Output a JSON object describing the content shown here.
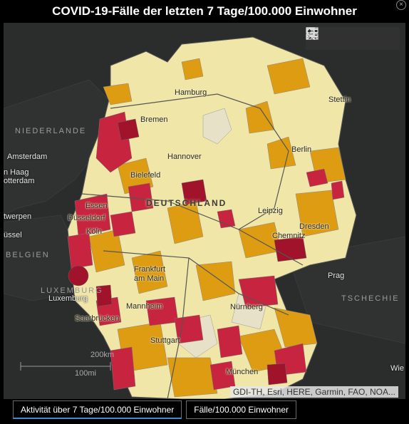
{
  "title": "COVID-19-Fälle der letzten 7 Tage/100.000 Einwohner",
  "toolbar": {
    "icons": [
      "search-icon",
      "bookmark-icon",
      "legend-icon",
      "basemap-gallery-icon"
    ]
  },
  "map": {
    "country_labels": {
      "netherlands": "NIEDERLANDE",
      "belgium": "BELGIEN",
      "luxembourg": "LUXEMBURG",
      "germany": "DEUTSCHLAND",
      "czech": "TSCHECHIE"
    },
    "cities": {
      "hamburg": "Hamburg",
      "stettin": "Stettin",
      "bremen": "Bremen",
      "berlin": "Berlin",
      "amsterdam": "Amsterdam",
      "den_haag": "n Haag",
      "rotterdam": "otterdam",
      "hannover": "Hannover",
      "bielefeld": "Bielefeld",
      "essen": "Essen",
      "duesseldorf": "Düsseldorf",
      "antwerpen": "twerpen",
      "bruessel": "üssel",
      "koeln": "Köln",
      "leipzig": "Leipzig",
      "dresden": "Dresden",
      "chemnitz": "Chemnitz",
      "prag": "Prag",
      "frankfurt_1": "Frankfurt",
      "frankfurt_2": "am Main",
      "luxemburg": "Luxemburg",
      "mannheim": "Mannheim",
      "nuernberg": "Nürnberg",
      "saarbruecken": "Saarbrücken",
      "stuttgart": "Stuttgart",
      "muenchen": "München",
      "wien": "Wie"
    },
    "colors": {
      "background": "#2b2c2c",
      "low": "#f0e6a8",
      "lowest": "#e7e1c8",
      "medium": "#dd9c12",
      "high": "#c7253f",
      "very_high": "#a1132b"
    }
  },
  "scale": {
    "km": "200km",
    "mi": "100mi"
  },
  "attribution": "GDI-TH, Esri, HERE, Garmin, FAO, NOA...",
  "tabs": [
    {
      "label": "Aktivität über 7 Tage/100.000 Einwohner",
      "active": true
    },
    {
      "label": "Fälle/100.000 Einwohner",
      "active": false
    }
  ]
}
